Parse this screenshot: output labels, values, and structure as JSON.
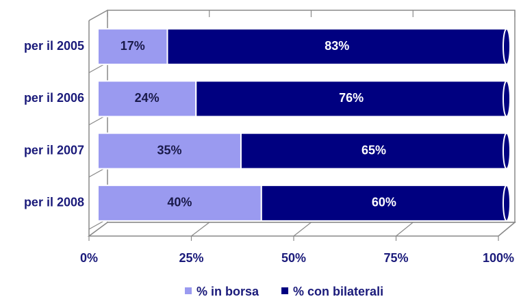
{
  "chart_data": {
    "type": "bar",
    "orientation": "horizontal",
    "stacked": true,
    "categories": [
      "per il 2005",
      "per il 2006",
      "per il 2007",
      "per il 2008"
    ],
    "series": [
      {
        "name": "% in borsa",
        "color": "#9a9af0",
        "values": [
          17,
          24,
          35,
          40
        ],
        "value_labels": [
          "17%",
          "24%",
          "35%",
          "40%"
        ]
      },
      {
        "name": "% con bilaterali",
        "color": "#000080",
        "values": [
          83,
          76,
          65,
          60
        ],
        "value_labels": [
          "83%",
          "76%",
          "65%",
          "60%"
        ]
      }
    ],
    "xlim": [
      0,
      100
    ],
    "xticks": [
      {
        "value": 0,
        "label": "0%"
      },
      {
        "value": 25,
        "label": "25%"
      },
      {
        "value": 50,
        "label": "50%"
      },
      {
        "value": 75,
        "label": "75%"
      },
      {
        "value": 100,
        "label": "100%"
      }
    ],
    "legend": "bottom"
  }
}
